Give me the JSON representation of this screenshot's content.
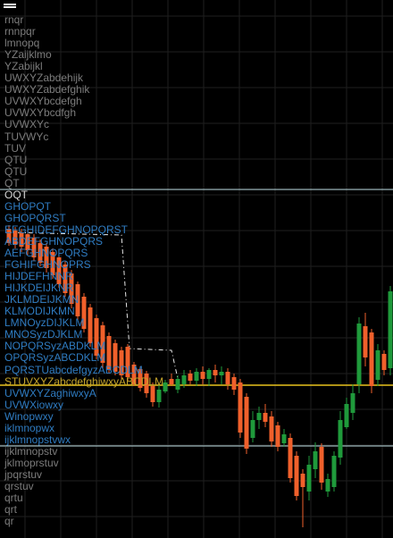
{
  "colors": {
    "background": "#000000",
    "grid": "#1f1f1f",
    "label_gray": "#7c7c7c",
    "label_blue": "#2f7cc2",
    "label_white": "#d6d6d6",
    "label_yellow": "#c5a42c",
    "bull_candle": "#1f9a3b",
    "bear_candle": "#f0602b",
    "hline_light": "#bfe0e6",
    "hline_yellow": "#e7c21e",
    "dashed_line": "#e6e6e6"
  },
  "icons": [
    "menu-icon"
  ],
  "labels": [
    {
      "text": "rnqr",
      "color": "gray"
    },
    {
      "text": "rnnpqr",
      "color": "gray"
    },
    {
      "text": "lmnopq",
      "color": "gray"
    },
    {
      "text": "YZaijklmo",
      "color": "gray"
    },
    {
      "text": "YZabijkl",
      "color": "gray"
    },
    {
      "text": "UWXYZabdehijk",
      "color": "gray"
    },
    {
      "text": "UWXYZabdefghik",
      "color": "gray"
    },
    {
      "text": "UVWXYbcdefgh",
      "color": "gray"
    },
    {
      "text": "UVWXYbcdfgh",
      "color": "gray"
    },
    {
      "text": "UVWXYc",
      "color": "gray"
    },
    {
      "text": "TUVWYc",
      "color": "gray"
    },
    {
      "text": "TUV",
      "color": "gray"
    },
    {
      "text": "QTU",
      "color": "gray"
    },
    {
      "text": "QTU",
      "color": "gray"
    },
    {
      "text": "QT",
      "color": "gray"
    },
    {
      "text": "OQT",
      "color": "white"
    },
    {
      "text": "GHOPQT",
      "color": "blue"
    },
    {
      "text": "GHOPQRST",
      "color": "blue"
    },
    {
      "text": "EFGHIDEFGHNOPQRST",
      "color": "blue"
    },
    {
      "text": "ABDEFGHNOPQRS",
      "color": "blue"
    },
    {
      "text": "AEFGHNOPQRS",
      "color": "blue"
    },
    {
      "text": "FGHIFGHNOPRS",
      "color": "blue"
    },
    {
      "text": "HIJDEFHNNR",
      "color": "blue"
    },
    {
      "text": "HIJKDEIJKNR",
      "color": "blue"
    },
    {
      "text": "JKLMDEIJKMN",
      "color": "blue"
    },
    {
      "text": "KLMODIJKMN",
      "color": "blue"
    },
    {
      "text": "LMNOyzDIJKLM",
      "color": "blue"
    },
    {
      "text": "MNOSyzDJKLM",
      "color": "blue"
    },
    {
      "text": "NOPQRSyzABDKLM",
      "color": "blue"
    },
    {
      "text": "OPQRSyzABCDKLM",
      "color": "blue"
    },
    {
      "text": "PQRSTUabcdefgyzABCDLM",
      "color": "blue"
    },
    {
      "text": "STUVXYZabcdefghiwxyABCDLM",
      "color": "yellow"
    },
    {
      "text": "UVWXYZaghiwxyA",
      "color": "blue"
    },
    {
      "text": "UVWXiowxy",
      "color": "blue"
    },
    {
      "text": "Winopwxy",
      "color": "blue"
    },
    {
      "text": "iklmnopwx",
      "color": "blue"
    },
    {
      "text": "ijklmnopstvwx",
      "color": "blue"
    },
    {
      "text": "ijklmnopstv",
      "color": "gray"
    },
    {
      "text": "jklmoprstuv",
      "color": "gray"
    },
    {
      "text": "jpqrstuv",
      "color": "gray"
    },
    {
      "text": "qrstuv",
      "color": "gray"
    },
    {
      "text": "qrtu",
      "color": "gray"
    },
    {
      "text": "qrt",
      "color": "gray"
    },
    {
      "text": "qr",
      "color": "gray"
    }
  ]
}
